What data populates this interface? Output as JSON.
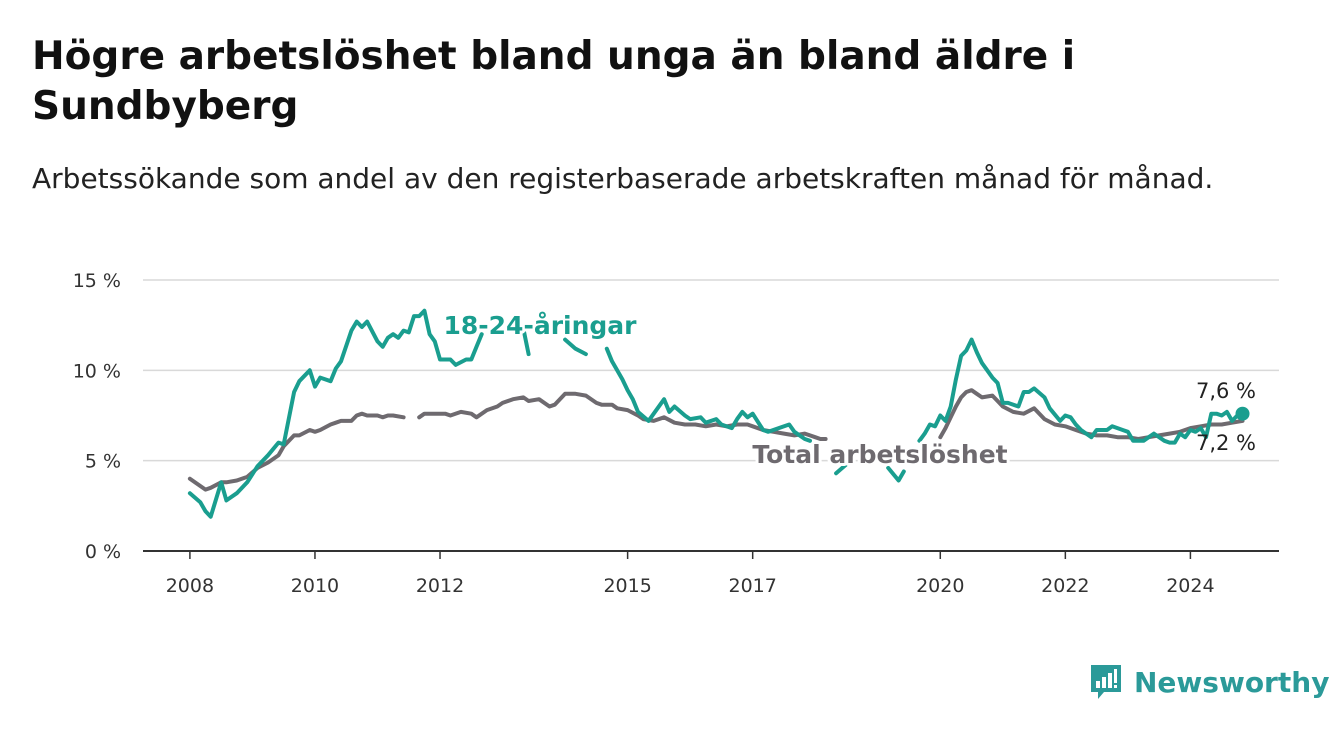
{
  "header": {
    "title": "Högre arbetslöshet bland unga än bland äldre i Sundbyberg",
    "subtitle": "Arbetssökande som andel av den registerbaserade arbetskraften månad för månad."
  },
  "brand": {
    "name": "Newsworthy",
    "icon": "newsworthy-logo-icon",
    "color": "#2b9a99"
  },
  "chart_data": {
    "type": "line",
    "title": "Högre arbetslöshet bland unga än bland äldre i Sundbyberg",
    "subtitle": "Arbetssökande som andel av den registerbaserade arbetskraften månad för månad.",
    "xlabel": "",
    "ylabel": "",
    "y_ticks": [
      {
        "value": 0,
        "label": "0 %"
      },
      {
        "value": 5,
        "label": "5 %"
      },
      {
        "value": 10,
        "label": "10 %"
      },
      {
        "value": 15,
        "label": "15 %"
      }
    ],
    "x_ticks": [
      {
        "value": "2008-01",
        "label": "2008"
      },
      {
        "value": "2010-01",
        "label": "2010"
      },
      {
        "value": "2012-01",
        "label": "2012"
      },
      {
        "value": "2015-01",
        "label": "2015"
      },
      {
        "value": "2017-01",
        "label": "2017"
      },
      {
        "value": "2020-01",
        "label": "2020"
      },
      {
        "value": "2022-01",
        "label": "2022"
      },
      {
        "value": "2024-01",
        "label": "2024"
      }
    ],
    "ylim": [
      0,
      15
    ],
    "xlim": [
      "2007-04",
      "2025-06"
    ],
    "grid": true,
    "series": [
      {
        "name": "18-24-åringar",
        "color": "#1a9e8f",
        "end_label": "7,6 %",
        "points": [
          [
            "2008-01",
            3.2
          ],
          [
            "2008-03",
            2.7
          ],
          [
            "2008-04",
            2.2
          ],
          [
            "2008-05",
            1.9
          ],
          [
            "2008-07",
            3.8
          ],
          [
            "2008-08",
            2.8
          ],
          [
            "2008-10",
            3.2
          ],
          [
            "2008-12",
            3.8
          ],
          [
            "2009-02",
            4.7
          ],
          [
            "2009-04",
            5.3
          ],
          [
            "2009-06",
            6.0
          ],
          [
            "2009-07",
            5.9
          ],
          [
            "2009-09",
            8.8
          ],
          [
            "2009-10",
            9.4
          ],
          [
            "2009-12",
            10.0
          ],
          [
            "2010-01",
            9.1
          ],
          [
            "2010-02",
            9.6
          ],
          [
            "2010-04",
            9.4
          ],
          [
            "2010-05",
            10.1
          ],
          [
            "2010-06",
            10.5
          ],
          [
            "2010-08",
            12.2
          ],
          [
            "2010-09",
            12.7
          ],
          [
            "2010-10",
            12.4
          ],
          [
            "2010-11",
            12.7
          ],
          [
            "2011-01",
            11.6
          ],
          [
            "2011-02",
            11.3
          ],
          [
            "2011-03",
            11.8
          ],
          [
            "2011-04",
            12.0
          ],
          [
            "2011-05",
            11.8
          ],
          [
            "2011-06",
            12.2
          ],
          [
            "2011-07",
            12.1
          ],
          [
            "2011-08",
            13.0
          ],
          [
            "2011-09",
            13.0
          ],
          [
            "2011-10",
            13.3
          ],
          [
            "2011-11",
            12.0
          ],
          [
            "2011-12",
            11.6
          ],
          [
            "2012-01",
            10.6
          ],
          [
            "2012-03",
            10.6
          ],
          [
            "2012-04",
            10.3
          ],
          [
            "2012-06",
            10.6
          ],
          [
            "2012-07",
            10.6
          ],
          [
            "2012-08",
            11.3
          ],
          [
            "2012-09",
            12.0
          ],
          [
            "2013-05",
            12.3
          ],
          [
            "2013-06",
            10.9
          ],
          [
            "2014-01",
            11.7
          ],
          [
            "2014-03",
            11.2
          ],
          [
            "2014-05",
            10.9
          ],
          [
            "2014-09",
            11.2
          ],
          [
            "2014-10",
            10.5
          ],
          [
            "2014-12",
            9.5
          ],
          [
            "2015-01",
            8.9
          ],
          [
            "2015-02",
            8.4
          ],
          [
            "2015-03",
            7.7
          ],
          [
            "2015-05",
            7.2
          ],
          [
            "2015-06",
            7.6
          ],
          [
            "2015-08",
            8.4
          ],
          [
            "2015-09",
            7.7
          ],
          [
            "2015-10",
            8.0
          ],
          [
            "2015-12",
            7.5
          ],
          [
            "2016-01",
            7.3
          ],
          [
            "2016-03",
            7.4
          ],
          [
            "2016-04",
            7.1
          ],
          [
            "2016-06",
            7.3
          ],
          [
            "2016-07",
            7.0
          ],
          [
            "2016-09",
            6.8
          ],
          [
            "2016-10",
            7.3
          ],
          [
            "2016-11",
            7.7
          ],
          [
            "2016-12",
            7.4
          ],
          [
            "2017-01",
            7.6
          ],
          [
            "2017-03",
            6.7
          ],
          [
            "2017-04",
            6.6
          ],
          [
            "2017-06",
            6.8
          ],
          [
            "2017-08",
            7.0
          ],
          [
            "2017-09",
            6.6
          ],
          [
            "2017-11",
            6.2
          ],
          [
            "2017-12",
            6.1
          ],
          [
            "2018-05",
            4.3
          ],
          [
            "2018-07",
            4.8
          ],
          [
            "2019-03",
            4.6
          ],
          [
            "2019-05",
            3.9
          ],
          [
            "2019-06",
            4.4
          ],
          [
            "2019-09",
            6.1
          ],
          [
            "2019-10",
            6.5
          ],
          [
            "2019-11",
            7.0
          ],
          [
            "2019-12",
            6.9
          ],
          [
            "2020-01",
            7.5
          ],
          [
            "2020-02",
            7.2
          ],
          [
            "2020-03",
            8.0
          ],
          [
            "2020-04",
            9.5
          ],
          [
            "2020-05",
            10.8
          ],
          [
            "2020-06",
            11.1
          ],
          [
            "2020-07",
            11.7
          ],
          [
            "2020-08",
            11.0
          ],
          [
            "2020-09",
            10.4
          ],
          [
            "2020-11",
            9.6
          ],
          [
            "2020-12",
            9.3
          ],
          [
            "2021-01",
            8.2
          ],
          [
            "2021-02",
            8.2
          ],
          [
            "2021-04",
            8.0
          ],
          [
            "2021-05",
            8.8
          ],
          [
            "2021-06",
            8.8
          ],
          [
            "2021-07",
            9.0
          ],
          [
            "2021-09",
            8.5
          ],
          [
            "2021-10",
            7.9
          ],
          [
            "2021-12",
            7.2
          ],
          [
            "2022-01",
            7.5
          ],
          [
            "2022-02",
            7.4
          ],
          [
            "2022-03",
            7.0
          ],
          [
            "2022-04",
            6.7
          ],
          [
            "2022-05",
            6.5
          ],
          [
            "2022-06",
            6.3
          ],
          [
            "2022-07",
            6.7
          ],
          [
            "2022-09",
            6.7
          ],
          [
            "2022-10",
            6.9
          ],
          [
            "2022-12",
            6.7
          ],
          [
            "2023-01",
            6.6
          ],
          [
            "2023-02",
            6.1
          ],
          [
            "2023-04",
            6.1
          ],
          [
            "2023-05",
            6.3
          ],
          [
            "2023-06",
            6.5
          ],
          [
            "2023-08",
            6.1
          ],
          [
            "2023-09",
            6.0
          ],
          [
            "2023-10",
            6.0
          ],
          [
            "2023-11",
            6.5
          ],
          [
            "2023-12",
            6.3
          ],
          [
            "2024-01",
            6.7
          ],
          [
            "2024-02",
            6.6
          ],
          [
            "2024-03",
            6.8
          ],
          [
            "2024-04",
            6.3
          ],
          [
            "2024-05",
            7.6
          ],
          [
            "2024-06",
            7.6
          ],
          [
            "2024-07",
            7.5
          ],
          [
            "2024-08",
            7.7
          ],
          [
            "2024-09",
            7.2
          ],
          [
            "2024-10",
            7.5
          ],
          [
            "2024-11",
            7.6
          ]
        ]
      },
      {
        "name": "Total arbetslöshet",
        "color": "#6e6a6f",
        "end_label": "7,2 %",
        "points": [
          [
            "2008-01",
            4.0
          ],
          [
            "2008-03",
            3.6
          ],
          [
            "2008-04",
            3.4
          ],
          [
            "2008-05",
            3.5
          ],
          [
            "2008-07",
            3.8
          ],
          [
            "2008-08",
            3.8
          ],
          [
            "2008-10",
            3.9
          ],
          [
            "2008-12",
            4.1
          ],
          [
            "2009-02",
            4.6
          ],
          [
            "2009-04",
            4.9
          ],
          [
            "2009-06",
            5.3
          ],
          [
            "2009-07",
            5.8
          ],
          [
            "2009-09",
            6.4
          ],
          [
            "2009-10",
            6.4
          ],
          [
            "2009-12",
            6.7
          ],
          [
            "2010-01",
            6.6
          ],
          [
            "2010-02",
            6.7
          ],
          [
            "2010-04",
            7.0
          ],
          [
            "2010-05",
            7.1
          ],
          [
            "2010-06",
            7.2
          ],
          [
            "2010-08",
            7.2
          ],
          [
            "2010-09",
            7.5
          ],
          [
            "2010-10",
            7.6
          ],
          [
            "2010-11",
            7.5
          ],
          [
            "2011-01",
            7.5
          ],
          [
            "2011-02",
            7.4
          ],
          [
            "2011-03",
            7.5
          ],
          [
            "2011-04",
            7.5
          ],
          [
            "2011-06",
            7.4
          ],
          [
            "2011-09",
            7.4
          ],
          [
            "2011-10",
            7.6
          ],
          [
            "2011-12",
            7.6
          ],
          [
            "2012-02",
            7.6
          ],
          [
            "2012-03",
            7.5
          ],
          [
            "2012-05",
            7.7
          ],
          [
            "2012-07",
            7.6
          ],
          [
            "2012-08",
            7.4
          ],
          [
            "2012-10",
            7.8
          ],
          [
            "2012-12",
            8.0
          ],
          [
            "2013-01",
            8.2
          ],
          [
            "2013-03",
            8.4
          ],
          [
            "2013-05",
            8.5
          ],
          [
            "2013-06",
            8.3
          ],
          [
            "2013-08",
            8.4
          ],
          [
            "2013-10",
            8.0
          ],
          [
            "2013-11",
            8.1
          ],
          [
            "2014-01",
            8.7
          ],
          [
            "2014-03",
            8.7
          ],
          [
            "2014-05",
            8.6
          ],
          [
            "2014-07",
            8.2
          ],
          [
            "2014-08",
            8.1
          ],
          [
            "2014-10",
            8.1
          ],
          [
            "2014-11",
            7.9
          ],
          [
            "2015-01",
            7.8
          ],
          [
            "2015-03",
            7.5
          ],
          [
            "2015-04",
            7.3
          ],
          [
            "2015-06",
            7.2
          ],
          [
            "2015-08",
            7.4
          ],
          [
            "2015-10",
            7.1
          ],
          [
            "2015-12",
            7.0
          ],
          [
            "2016-02",
            7.0
          ],
          [
            "2016-04",
            6.9
          ],
          [
            "2016-06",
            7.0
          ],
          [
            "2016-08",
            6.9
          ],
          [
            "2016-10",
            7.0
          ],
          [
            "2016-12",
            7.0
          ],
          [
            "2017-01",
            6.9
          ],
          [
            "2017-03",
            6.7
          ],
          [
            "2017-05",
            6.6
          ],
          [
            "2017-07",
            6.5
          ],
          [
            "2017-09",
            6.4
          ],
          [
            "2017-11",
            6.5
          ],
          [
            "2017-12",
            6.4
          ],
          [
            "2018-01",
            6.3
          ],
          [
            "2018-02",
            6.2
          ],
          [
            "2018-03",
            6.2
          ],
          [
            "2020-01",
            6.3
          ],
          [
            "2020-02",
            6.8
          ],
          [
            "2020-03",
            7.4
          ],
          [
            "2020-04",
            8.0
          ],
          [
            "2020-05",
            8.5
          ],
          [
            "2020-06",
            8.8
          ],
          [
            "2020-07",
            8.9
          ],
          [
            "2020-08",
            8.7
          ],
          [
            "2020-09",
            8.5
          ],
          [
            "2020-11",
            8.6
          ],
          [
            "2020-12",
            8.3
          ],
          [
            "2021-01",
            8.0
          ],
          [
            "2021-03",
            7.7
          ],
          [
            "2021-05",
            7.6
          ],
          [
            "2021-07",
            7.9
          ],
          [
            "2021-09",
            7.3
          ],
          [
            "2021-11",
            7.0
          ],
          [
            "2022-01",
            6.9
          ],
          [
            "2022-03",
            6.7
          ],
          [
            "2022-05",
            6.5
          ],
          [
            "2022-07",
            6.4
          ],
          [
            "2022-09",
            6.4
          ],
          [
            "2022-11",
            6.3
          ],
          [
            "2023-01",
            6.3
          ],
          [
            "2023-03",
            6.2
          ],
          [
            "2023-05",
            6.3
          ],
          [
            "2023-07",
            6.4
          ],
          [
            "2023-09",
            6.5
          ],
          [
            "2023-11",
            6.6
          ],
          [
            "2024-01",
            6.8
          ],
          [
            "2024-03",
            6.9
          ],
          [
            "2024-05",
            7.0
          ],
          [
            "2024-07",
            7.0
          ],
          [
            "2024-09",
            7.1
          ],
          [
            "2024-11",
            7.2
          ]
        ]
      }
    ],
    "annotations": {
      "youth_label": "18-24-åringar",
      "total_label": "Total arbetslöshet"
    }
  }
}
